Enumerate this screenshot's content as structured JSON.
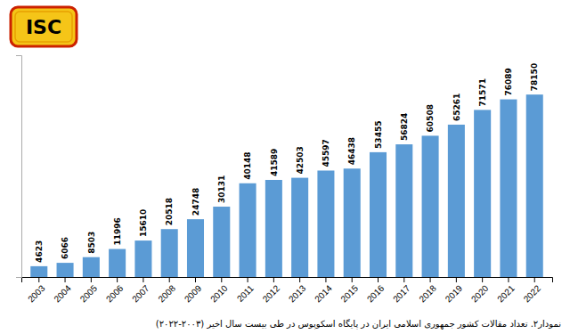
{
  "chart_data": {
    "type": "bar",
    "title": "نمودار۲. تعداد مقالات کشور جمهوری اسلامی ایران در پایگاه اسکوپوس در طی بیست سال اخیر (۲۰۰۳-۲۰۲۲)",
    "annotations": [
      "ISC"
    ],
    "categories": [
      "2003",
      "2004",
      "2005",
      "2006",
      "2007",
      "2008",
      "2009",
      "2010",
      "2011",
      "2012",
      "2013",
      "2014",
      "2015",
      "2016",
      "2017",
      "2018",
      "2019",
      "2020",
      "2021",
      "2022"
    ],
    "values": [
      4623,
      6066,
      8503,
      11996,
      15610,
      20518,
      24748,
      30131,
      40148,
      41589,
      42503,
      45597,
      46438,
      53455,
      56824,
      60508,
      65261,
      71571,
      76089,
      78150
    ],
    "color": "#5b9bd5",
    "ylim": [
      0,
      95000
    ],
    "grid": false,
    "data_labels": true,
    "tick_labels": "x"
  }
}
